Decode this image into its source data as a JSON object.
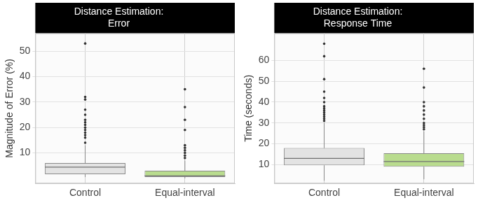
{
  "chart_data": [
    {
      "type": "box",
      "title": [
        "Distance Estimation:",
        "Error"
      ],
      "y_label": "Magnitude of Error (%)",
      "categories": [
        "Control",
        "Equal-interval"
      ],
      "boxes": [
        {
          "min": 0.5,
          "q1": 1.6,
          "median": 4.4,
          "q3": 6,
          "max": 13,
          "outliers": [
            14,
            16,
            17,
            18,
            19,
            20,
            21,
            22,
            23,
            25,
            27,
            31,
            32,
            53
          ]
        },
        {
          "min": 0,
          "q1": 0.5,
          "median": 1,
          "q3": 3,
          "max": 7,
          "outliers": [
            8,
            9,
            10,
            11,
            12,
            13,
            19,
            23,
            28,
            35
          ]
        }
      ],
      "colors": [
        "#e3e3e3",
        "#b9dc8e"
      ],
      "ylim": [
        -2,
        57
      ],
      "yticks": [
        10,
        20,
        30,
        40,
        50
      ],
      "grid": true
    },
    {
      "type": "box",
      "title": [
        "Distance Estimation:",
        "Response Time"
      ],
      "y_label": "Time (seconds)",
      "categories": [
        "Control",
        "Equal-interval"
      ],
      "boxes": [
        {
          "min": 2.3,
          "q1": 9.7,
          "median": 13,
          "q3": 18,
          "max": 30,
          "outliers": [
            31,
            32,
            33,
            34,
            35,
            36,
            37,
            38,
            40,
            42,
            45,
            51,
            62,
            68
          ]
        },
        {
          "min": 3,
          "q1": 9,
          "median": 11.5,
          "q3": 15.5,
          "max": 26,
          "outliers": [
            27,
            28,
            29,
            30,
            32,
            34,
            36,
            38,
            40,
            47,
            56
          ]
        }
      ],
      "colors": [
        "#e3e3e3",
        "#b9dc8e"
      ],
      "ylim": [
        1,
        73
      ],
      "yticks": [
        10,
        20,
        30,
        40,
        50,
        60
      ],
      "grid": true
    }
  ]
}
